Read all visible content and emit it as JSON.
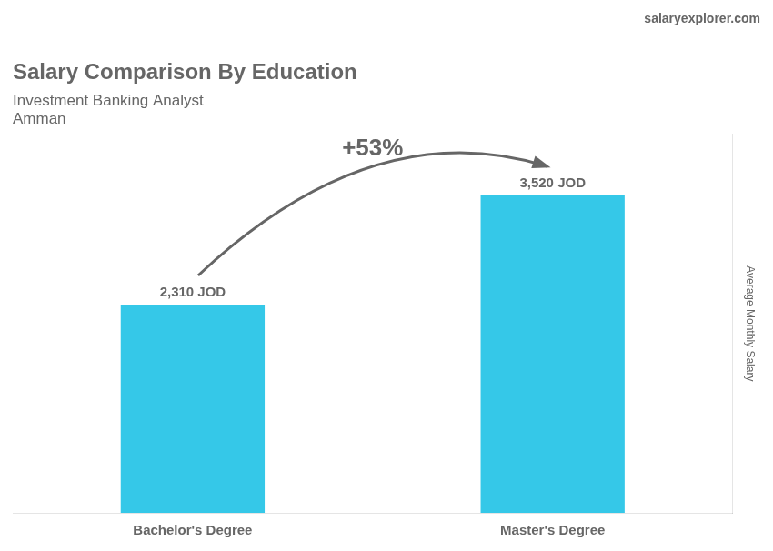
{
  "chart_data": {
    "type": "bar",
    "title": "Salary Comparison By Education",
    "subtitle": [
      "Investment Banking Analyst",
      "Amman"
    ],
    "ylabel": "Average Monthly Salary",
    "categories": [
      "Bachelor's Degree",
      "Master's Degree"
    ],
    "values": [
      2310,
      3520
    ],
    "value_labels": [
      "2,310 JOD",
      "3,520 JOD"
    ],
    "data_labels": true,
    "color": "#35C8E8",
    "ylim": [
      0,
      4200
    ],
    "grid": false,
    "tick_labels": "x",
    "annotations": [
      {
        "text": "+53%",
        "from": "Bachelor's Degree",
        "to": "Master's Degree"
      },
      {
        "text": "salaryexplorer.com"
      }
    ]
  }
}
